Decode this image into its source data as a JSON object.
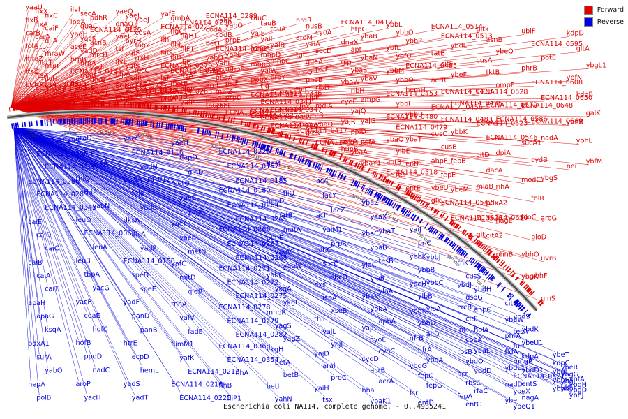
{
  "caption": "Escherichia coli NA114, complete genome. - 0..4935241",
  "legend": [
    {
      "label": "Forward",
      "color": "#e00000"
    },
    {
      "label": "Reverse",
      "color": "#0000e0"
    }
  ],
  "ticks": [
    "50 kbp",
    "100 kbp",
    "150 kbp",
    "200 kbp",
    "250 kbp",
    "300 kbp",
    "350 kbp",
    "400 kbp",
    "450 kbp",
    "500 kbp",
    "550 kbp",
    "600 kbp",
    "650 kbp",
    "700 kbp"
  ],
  "forward_labels": [
    "yaaU",
    "fixX",
    "fixC",
    "fixB",
    "fixA",
    "caiF",
    "carB",
    "carA",
    "djlA",
    "folA",
    "araC",
    "mraW",
    "mraZ",
    "mutT",
    "fruR",
    "ftsZ",
    "ftsA",
    "ilvH",
    "ECNA114_0070",
    "ECNA114_0065",
    "ampD",
    "ftsL",
    "ilvI",
    "secA",
    "pdhR",
    "lpdA",
    "quaC",
    "ECNA114_0125",
    "yadH",
    "yacK",
    "acnB",
    "aceE",
    "yadD",
    "mrcB",
    "hrpB",
    "hrpA",
    "yadI",
    "ECNA114_0141",
    "rnhB",
    "fhuB",
    "fhuD",
    "rpsB",
    "yaeG",
    "lpxB",
    "yaeQ",
    "yaeL",
    "yaeJ",
    "dnaQ",
    "tpiA",
    "cdsA",
    "yaeI",
    "pyrH",
    "fabZ",
    "tsf",
    "cutF",
    "rrsH",
    "ilvE",
    "yafS",
    "ldcC",
    "hlpA",
    "yadR",
    "yaeT",
    "ECNA114_0222",
    "ECNA114_0227",
    "yafD",
    "dkgB",
    "yafE",
    "qmhA",
    "ECNA114_0230",
    "ECNA114_0229",
    "flgC1",
    "flgH1",
    "flhJ",
    "flhI",
    "fliF1",
    "fliG",
    "fliD1",
    "lfiE",
    "ECNA114_0270",
    "ECNA114_0284",
    "frsA",
    "laft",
    "motB",
    "dinP",
    "ECNA114_0283",
    "yagU",
    "yafP",
    "proA",
    "ECNA114_0289",
    "yahK",
    "yahO",
    "codA",
    "codB",
    "prpE",
    "betT",
    "ECNA114_0292",
    "yahE",
    "yahD",
    "yahI",
    "mhpE",
    "mhpA",
    "phoA",
    "psiF",
    "aroL",
    "malZ",
    "prpD",
    "prpC",
    "yahL",
    "ECNA114_0313",
    "tauD",
    "tauC",
    "tauB",
    "tauA",
    "yaiE",
    "yaiL",
    "yaiB",
    "mhpF",
    "mhpD",
    "mhpC",
    "mhpB",
    "yaiW",
    "proY",
    "ppbX",
    "tig",
    "ECNA114_0336",
    "ECNA114_0340",
    "ECNA114_0341",
    "ECNA114_0347",
    "ECNA114_0346",
    "ECNA114_0357",
    "ECNA114_0361",
    "ECNA114_0375",
    "nrdR",
    "nusB",
    "cyoA",
    "aroM",
    "yaiA",
    "secD",
    "tgt",
    "queA",
    "psiF1",
    "brnQ",
    "phoB",
    "ribD",
    "thiL",
    "clpP",
    "mdlA",
    "clpX",
    "amtB",
    "ybaO",
    "ybaY",
    "glnK",
    "ECNA114_0432",
    "ECNA114_0417",
    "ECNA114_0412",
    "htpG",
    "ybaB",
    "dnaX",
    "apt",
    "ybaN",
    "gip",
    "ybaS",
    "ybaV",
    "ybaW",
    "ribH",
    "ampG",
    "cyoE",
    "yajQ",
    "yajG",
    "yajR",
    "ppiD",
    "aefA",
    "ushA",
    "ybaA",
    "ybaY1",
    "hupB",
    "ybbL",
    "ybbO",
    "ybbP",
    "ybfL",
    "ybfO",
    "ECNA114_0485",
    "ybbM",
    "ybbQ",
    "hemH",
    "ECNA114_0453",
    "ybbI",
    "ybbU",
    "ECNA114_0480",
    "ECNA114_0479",
    "ybaT",
    "ybaQ",
    "ylbE",
    "entF",
    "entB",
    "fes",
    "entE",
    "ECNA114_0518",
    "ECNA114_0514",
    "ECNA114_0513",
    "ybdL",
    "tatE",
    "citE",
    "ybeF",
    "acrR",
    "ECNA114_0413",
    "ECNA114_0435",
    "ECNA114_0456",
    "ECNA114_0483",
    "ybbK",
    "cusC",
    "cusB",
    "fepB",
    "ahpF",
    "fepE",
    "ybeM",
    "ybeU",
    "ECNA114_0542",
    "ECNA114_0526",
    "glkL",
    "gltk",
    "asnB",
    "ybeQ",
    "cusA",
    "tktB",
    "ompF",
    "ECNA114_0528",
    "ECNA114_0572",
    "ECNA114_0586",
    "ECNA114_0523",
    "ECNA114_0546",
    "dpiA",
    "citD",
    "dacA",
    "rihA",
    "miaB",
    "pdxA2",
    "nagE",
    "ECNA114_0610",
    "citA2",
    "phnB",
    "gltJ",
    "ubiF",
    "ECNA114_0595",
    "potE",
    "phrB",
    "ECNA114_0608",
    "ECNA114_0650",
    "ECNA114_0648",
    "ECNA114_0649",
    "nadA",
    "sucA1",
    "cydB",
    "ybgS",
    "modC",
    "tolR",
    "aroG",
    "bioC",
    "bioD",
    "uvrB",
    "ybhO",
    "ybhF",
    "glnS",
    "ybgK",
    "kdpD",
    "gltA",
    "ybgL1",
    "ybfN",
    "kdpB",
    "galK",
    "ybhB",
    "ybhL",
    "ybfM",
    "nei"
  ],
  "reverse_labels": [
    "ECNA114_0299",
    "ECNA114_0298",
    "ECNA114_0356",
    "ECNA114_0286",
    "ECNA114_0285",
    "ECNA114_0345",
    "caiE",
    "caiD",
    "caiC",
    "caiB",
    "caiA",
    "caiT",
    "apaH",
    "apaG",
    "ksqA",
    "pdxA1",
    "surA",
    "yabO",
    "hepA",
    "polB",
    "araD",
    "araA",
    "araB",
    "thiQ",
    "thiP",
    "yabN",
    "leuD",
    "ECNA114_0063",
    "leuA",
    "leuB",
    "tbpA",
    "yacG",
    "yacF",
    "coaE",
    "hofC",
    "hofB",
    "ppdD",
    "nadC",
    "aroP",
    "yacH",
    "yacC",
    "ECNA114_0116",
    "yadN",
    "ECNA114_0126",
    "folK",
    "yadB",
    "dksA",
    "sfsA",
    "yadP",
    "ECNA114_0150",
    "speD",
    "speE",
    "yadF",
    "panD",
    "panB",
    "htrE",
    "ecpD",
    "hemL",
    "yadS",
    "yadT",
    "yaeH",
    "dapD",
    "glnD",
    "metQ",
    "yaeC",
    "yaeE",
    "yaeF",
    "yaeB",
    "metN",
    "yafC",
    "mitD",
    "qloB",
    "rnhA",
    "yafV",
    "fadE",
    "flimM1",
    "yafK",
    "ECNA114_0212",
    "ECNA114_0216",
    "ECNA114_0225",
    "ECNA114_0226",
    "ECNA114_0157",
    "ECNA114_0185",
    "ECNA114_0180",
    "ECNA114_0264",
    "ECNA114_0265",
    "ECNA114_0266",
    "ECNA114_0267",
    "ECNA114_0268",
    "ECNA114_0271",
    "ECNA114_0272",
    "ECNA114_0275",
    "ECNA114_0278",
    "ECNA114_0279",
    "ECNA114_0282",
    "ECNA114_0368",
    "ECNA114_0354",
    "flhA",
    "flhB",
    "fliP1",
    "flgM",
    "fliN",
    "fliQ",
    "pepD",
    "matB",
    "matA",
    "phoE",
    "vagV",
    "yagW",
    "yahC",
    "ykgA",
    "ykgI",
    "mhpR",
    "yagS",
    "yagZ",
    "vkgH",
    "betA",
    "betB",
    "betI",
    "yahN",
    "lacA",
    "lacY",
    "lacZ",
    "lacI",
    "yaiM1",
    "prpR",
    "adhC",
    "sbcC",
    "sbcD",
    "dxs",
    "ispA",
    "xseB",
    "thiI",
    "yajL",
    "yajI",
    "yajD",
    "aral",
    "proC",
    "yaiH",
    "tsx",
    "ybaZ",
    "yaaX",
    "ybaT",
    "ybaC",
    "ybaB",
    "tesB",
    "ylaC",
    "ylaB",
    "ylaA",
    "ybaK",
    "ybbA",
    "apbA",
    "yajR",
    "cyoE",
    "cyoC",
    "cyoD",
    "acrB",
    "acrA",
    "hha",
    "ybaK1",
    "yaiJ",
    "priC",
    "ybbJ",
    "ybbK",
    "ybbB",
    "ybbC",
    "ybcH",
    "ylbB",
    "ylbA",
    "ybbN",
    "ybbO",
    "allD",
    "nfrB",
    "nfrA",
    "ybdA",
    "ybdG",
    "fepC",
    "fepG",
    "fsr",
    "entD",
    "rnk",
    "cusS",
    "ybdH",
    "ybdJ",
    "dsbG",
    "ahpC",
    "crcB",
    "citF",
    "holA",
    "lnt",
    "copA",
    "ybaL",
    "rbsB",
    "ybdO",
    "ybdD",
    "hcr",
    "rbsC",
    "rfaC",
    "fepA",
    "entC",
    "citG",
    "ybdS",
    "ybdK",
    "ybdW",
    "tesA",
    "ybeU1",
    "phrA",
    "fur",
    "kdpA",
    "fldA",
    "mngR",
    "ybdD1",
    "ybdL1",
    "ECNA114_0521",
    "entS",
    "nadD",
    "ybeX",
    "nagA",
    "ybeJ",
    "ybeQ1",
    "ybeT",
    "ybeR",
    "ybfA",
    "kdpC",
    "ybgG",
    "ybgH",
    "ybgI",
    "ybgJ",
    "ybgD",
    "ybhH",
    "ybhI",
    "ybhJ",
    "ybhK"
  ]
}
